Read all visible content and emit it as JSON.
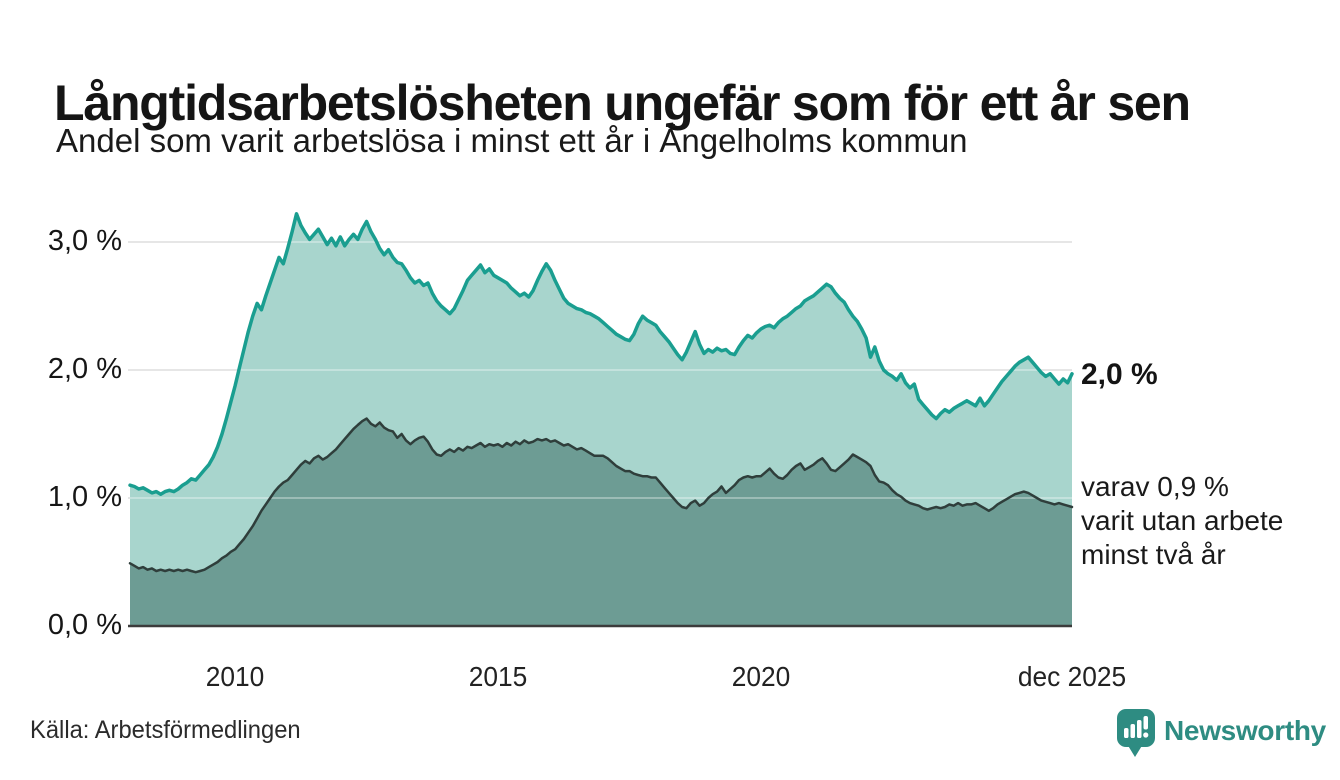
{
  "header": {
    "title": "Långtidsarbetslösheten ungefär som för ett år sen",
    "subtitle": "Andel som varit arbetslösa i minst ett år i Ängelholms kommun"
  },
  "annotations": {
    "latest_total": "2,0 %",
    "sub_lines": [
      "varav 0,9 %",
      "varit utan arbete",
      "minst två år"
    ]
  },
  "footer": {
    "source": "Källa: Arbetsförmedlingen",
    "brand": "Newsworthy"
  },
  "colors": {
    "accent_line": "#1a9e90",
    "accent_fill": "#a8d5cd",
    "dark_line": "#2f3e3b",
    "dark_fill": "#6d9c94",
    "gridline": "#dadada",
    "gridline_overlay": "rgba(255,255,255,0.32)",
    "baseline": "#3c3c3c",
    "brand_teal": "#2e8c82",
    "text": "#1a1a1a"
  },
  "chart_data": {
    "type": "area",
    "title": "Långtidsarbetslösheten ungefär som för ett år sen",
    "subtitle": "Andel som varit arbetslösa i minst ett år i Ängelholms kommun",
    "unit": "%",
    "x_start": "2008-01",
    "x_end": "2025-12",
    "interval_months": 1,
    "ylim": [
      0,
      3.3
    ],
    "grid": true,
    "legend_position": "right-annotations",
    "y_ticks": [
      {
        "label": "3,0 %",
        "v": 3
      },
      {
        "label": "2,0 %",
        "v": 2
      },
      {
        "label": "1,0 %",
        "v": 1
      },
      {
        "label": "0,0 %",
        "v": 0
      }
    ],
    "x_ticks": [
      {
        "label": "2010",
        "t": 2010
      },
      {
        "label": "2015",
        "t": 2015
      },
      {
        "label": "2020",
        "t": 2020
      },
      {
        "label": "dec 2025",
        "t": 2025.917
      }
    ],
    "latest": {
      "total": 2.0,
      "two_years": 0.9
    },
    "series": [
      {
        "name": "Andel arbetslösa minst ett år",
        "line_color": "#1a9e90",
        "fill_color": "#a8d5cd",
        "line_width": 3.5,
        "values": [
          1.1,
          1.09,
          1.07,
          1.08,
          1.06,
          1.04,
          1.05,
          1.03,
          1.05,
          1.06,
          1.05,
          1.07,
          1.1,
          1.12,
          1.15,
          1.14,
          1.18,
          1.22,
          1.26,
          1.32,
          1.4,
          1.5,
          1.62,
          1.75,
          1.88,
          2.02,
          2.16,
          2.3,
          2.42,
          2.52,
          2.47,
          2.58,
          2.68,
          2.78,
          2.88,
          2.83,
          2.95,
          3.08,
          3.22,
          3.13,
          3.07,
          3.02,
          3.06,
          3.1,
          3.04,
          2.98,
          3.03,
          2.97,
          3.04,
          2.97,
          3.02,
          3.06,
          3.02,
          3.1,
          3.16,
          3.08,
          3.02,
          2.95,
          2.9,
          2.94,
          2.88,
          2.84,
          2.83,
          2.78,
          2.72,
          2.68,
          2.7,
          2.66,
          2.68,
          2.6,
          2.54,
          2.5,
          2.47,
          2.44,
          2.48,
          2.55,
          2.62,
          2.7,
          2.74,
          2.78,
          2.82,
          2.76,
          2.79,
          2.74,
          2.72,
          2.7,
          2.68,
          2.64,
          2.61,
          2.58,
          2.6,
          2.57,
          2.62,
          2.7,
          2.77,
          2.83,
          2.78,
          2.7,
          2.63,
          2.56,
          2.52,
          2.5,
          2.48,
          2.47,
          2.45,
          2.44,
          2.42,
          2.4,
          2.37,
          2.34,
          2.31,
          2.28,
          2.26,
          2.24,
          2.23,
          2.28,
          2.36,
          2.42,
          2.39,
          2.37,
          2.35,
          2.3,
          2.26,
          2.22,
          2.17,
          2.12,
          2.08,
          2.14,
          2.22,
          2.3,
          2.2,
          2.13,
          2.16,
          2.14,
          2.17,
          2.15,
          2.16,
          2.13,
          2.12,
          2.18,
          2.23,
          2.27,
          2.25,
          2.29,
          2.32,
          2.34,
          2.35,
          2.33,
          2.37,
          2.4,
          2.42,
          2.45,
          2.48,
          2.5,
          2.54,
          2.56,
          2.58,
          2.61,
          2.64,
          2.67,
          2.65,
          2.6,
          2.56,
          2.53,
          2.47,
          2.42,
          2.38,
          2.32,
          2.25,
          2.1,
          2.18,
          2.07,
          2.0,
          1.97,
          1.95,
          1.92,
          1.97,
          1.9,
          1.86,
          1.89,
          1.77,
          1.73,
          1.69,
          1.65,
          1.62,
          1.66,
          1.69,
          1.67,
          1.7,
          1.72,
          1.74,
          1.76,
          1.74,
          1.72,
          1.78,
          1.72,
          1.76,
          1.81,
          1.86,
          1.91,
          1.95,
          1.99,
          2.03,
          2.06,
          2.08,
          2.1,
          2.06,
          2.02,
          1.98,
          1.95,
          1.97,
          1.93,
          1.89,
          1.93,
          1.9,
          1.97
        ]
      },
      {
        "name": "varav arbetslösa minst två år",
        "line_color": "#2f3e3b",
        "fill_color": "#6d9c94",
        "line_width": 2.5,
        "values": [
          0.49,
          0.47,
          0.45,
          0.46,
          0.44,
          0.45,
          0.43,
          0.44,
          0.43,
          0.44,
          0.43,
          0.44,
          0.43,
          0.44,
          0.43,
          0.42,
          0.43,
          0.44,
          0.46,
          0.48,
          0.5,
          0.53,
          0.55,
          0.58,
          0.6,
          0.64,
          0.68,
          0.73,
          0.78,
          0.84,
          0.9,
          0.95,
          1.0,
          1.05,
          1.09,
          1.12,
          1.14,
          1.18,
          1.22,
          1.26,
          1.29,
          1.27,
          1.31,
          1.33,
          1.3,
          1.32,
          1.35,
          1.38,
          1.42,
          1.46,
          1.5,
          1.54,
          1.57,
          1.6,
          1.62,
          1.58,
          1.56,
          1.59,
          1.55,
          1.53,
          1.52,
          1.47,
          1.5,
          1.45,
          1.42,
          1.45,
          1.47,
          1.48,
          1.44,
          1.38,
          1.34,
          1.33,
          1.36,
          1.38,
          1.36,
          1.39,
          1.37,
          1.4,
          1.39,
          1.41,
          1.43,
          1.4,
          1.42,
          1.41,
          1.42,
          1.4,
          1.43,
          1.41,
          1.44,
          1.42,
          1.45,
          1.43,
          1.44,
          1.46,
          1.45,
          1.46,
          1.44,
          1.45,
          1.43,
          1.41,
          1.42,
          1.4,
          1.38,
          1.39,
          1.37,
          1.35,
          1.33,
          1.33,
          1.33,
          1.31,
          1.28,
          1.25,
          1.23,
          1.21,
          1.21,
          1.19,
          1.18,
          1.17,
          1.17,
          1.16,
          1.16,
          1.12,
          1.08,
          1.04,
          1.0,
          0.96,
          0.93,
          0.92,
          0.96,
          0.98,
          0.94,
          0.96,
          1.0,
          1.03,
          1.05,
          1.09,
          1.04,
          1.07,
          1.1,
          1.14,
          1.16,
          1.17,
          1.16,
          1.17,
          1.17,
          1.2,
          1.23,
          1.19,
          1.16,
          1.15,
          1.18,
          1.22,
          1.25,
          1.27,
          1.22,
          1.24,
          1.26,
          1.29,
          1.31,
          1.27,
          1.22,
          1.21,
          1.24,
          1.27,
          1.3,
          1.34,
          1.32,
          1.3,
          1.28,
          1.25,
          1.18,
          1.13,
          1.12,
          1.1,
          1.06,
          1.03,
          1.01,
          0.98,
          0.96,
          0.95,
          0.94,
          0.92,
          0.91,
          0.92,
          0.93,
          0.92,
          0.93,
          0.95,
          0.94,
          0.96,
          0.94,
          0.95,
          0.95,
          0.96,
          0.94,
          0.92,
          0.9,
          0.92,
          0.95,
          0.97,
          0.99,
          1.01,
          1.03,
          1.04,
          1.05,
          1.04,
          1.02,
          1.0,
          0.98,
          0.97,
          0.96,
          0.95,
          0.96,
          0.95,
          0.94,
          0.93
        ]
      }
    ]
  }
}
